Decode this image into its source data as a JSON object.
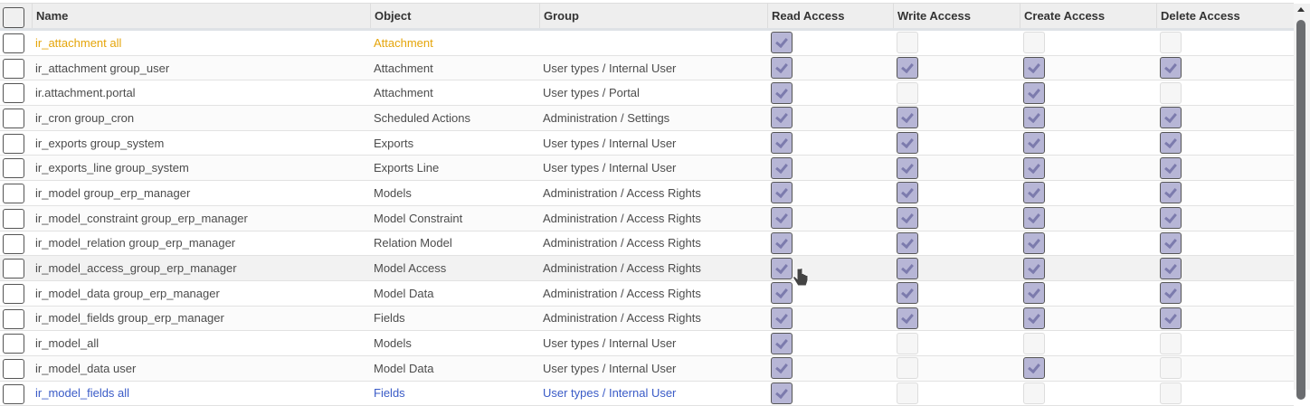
{
  "columns": {
    "name": "Name",
    "object": "Object",
    "group": "Group",
    "read": "Read Access",
    "write": "Write Access",
    "create": "Create Access",
    "delete": "Delete Access"
  },
  "colors": {
    "checked_fill": "#b7b6d6",
    "check_mark": "#7c7bad",
    "warning_text": "#e5a50a"
  },
  "rows": [
    {
      "name": "ir_attachment all",
      "object": "Attachment",
      "group": "",
      "read": true,
      "write": false,
      "create": false,
      "delete": false,
      "style": "warn"
    },
    {
      "name": "ir_attachment group_user",
      "object": "Attachment",
      "group": "User types / Internal User",
      "read": true,
      "write": true,
      "create": true,
      "delete": true
    },
    {
      "name": "ir.attachment.portal",
      "object": "Attachment",
      "group": "User types / Portal",
      "read": true,
      "write": false,
      "create": true,
      "delete": false
    },
    {
      "name": "ir_cron group_cron",
      "object": "Scheduled Actions",
      "group": "Administration / Settings",
      "read": true,
      "write": true,
      "create": true,
      "delete": true
    },
    {
      "name": "ir_exports group_system",
      "object": "Exports",
      "group": "User types / Internal User",
      "read": true,
      "write": true,
      "create": true,
      "delete": true
    },
    {
      "name": "ir_exports_line group_system",
      "object": "Exports Line",
      "group": "User types / Internal User",
      "read": true,
      "write": true,
      "create": true,
      "delete": true
    },
    {
      "name": "ir_model group_erp_manager",
      "object": "Models",
      "group": "Administration / Access Rights",
      "read": true,
      "write": true,
      "create": true,
      "delete": true
    },
    {
      "name": "ir_model_constraint group_erp_manager",
      "object": "Model Constraint",
      "group": "Administration / Access Rights",
      "read": true,
      "write": true,
      "create": true,
      "delete": true
    },
    {
      "name": "ir_model_relation group_erp_manager",
      "object": "Relation Model",
      "group": "Administration / Access Rights",
      "read": true,
      "write": true,
      "create": true,
      "delete": true
    },
    {
      "name": "ir_model_access_group_erp_manager",
      "object": "Model Access",
      "group": "Administration / Access Rights",
      "read": true,
      "write": true,
      "create": true,
      "delete": true,
      "style": "hover"
    },
    {
      "name": "ir_model_data group_erp_manager",
      "object": "Model Data",
      "group": "Administration / Access Rights",
      "read": true,
      "write": true,
      "create": true,
      "delete": true
    },
    {
      "name": "ir_model_fields group_erp_manager",
      "object": "Fields",
      "group": "Administration / Access Rights",
      "read": true,
      "write": true,
      "create": true,
      "delete": true
    },
    {
      "name": "ir_model_all",
      "object": "Models",
      "group": "User types / Internal User",
      "read": true,
      "write": false,
      "create": false,
      "delete": false
    },
    {
      "name": "ir_model_data user",
      "object": "Model Data",
      "group": "User types / Internal User",
      "read": true,
      "write": false,
      "create": true,
      "delete": false
    },
    {
      "name": "ir_model_fields all",
      "object": "Fields",
      "group": "User types / Internal User",
      "read": true,
      "write": false,
      "create": false,
      "delete": false,
      "style": "last"
    }
  ]
}
